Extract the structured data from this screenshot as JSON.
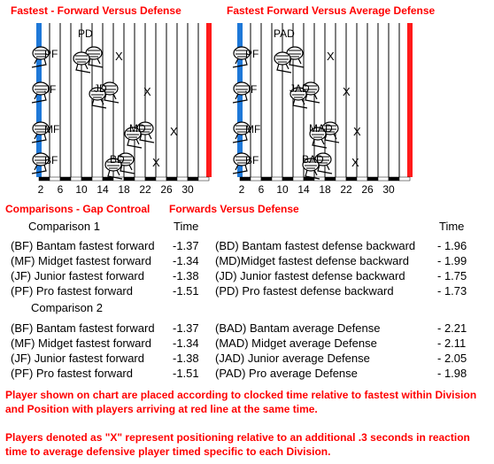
{
  "colors": {
    "accent_red": "#ff0000",
    "start_blue": "#1e78d8",
    "finish_red": "#ff1a1a"
  },
  "titles": {
    "left_chart": "Fastest - Forward Versus Defense",
    "right_chart": "Fastest Forward Versus Average Defense",
    "comparisons_gap": "Comparisons - Gap Controal",
    "forwards_vs_defense": "Forwards Versus Defense"
  },
  "chart_data": [
    {
      "type": "diagram",
      "title": "Fastest - Forward Versus Defense",
      "x_tick_labels": [
        "2",
        "6",
        "10",
        "14",
        "18",
        "22",
        "26",
        "30"
      ],
      "rows": [
        {
          "forward": "PF",
          "defense": "PD"
        },
        {
          "forward": "JF",
          "defense": "JD"
        },
        {
          "forward": "MF",
          "defense": "MD"
        },
        {
          "forward": "BF",
          "defense": "BD"
        }
      ],
      "marker": "X"
    },
    {
      "type": "diagram",
      "title": "Fastest Forward Versus Average Defense",
      "x_tick_labels": [
        "2",
        "6",
        "10",
        "14",
        "18",
        "22",
        "26",
        "30"
      ],
      "rows": [
        {
          "forward": "PF",
          "defense": "PAD"
        },
        {
          "forward": "JF",
          "defense": "JAD"
        },
        {
          "forward": "MF",
          "defense": "MAD"
        },
        {
          "forward": "BF",
          "defense": "BAD"
        }
      ],
      "marker": "X"
    }
  ],
  "time_header": "Time",
  "comparison1": {
    "label": "Comparison 1",
    "time_header": "Time",
    "left": [
      {
        "name": "(BF)  Bantam fastest forward",
        "time": "-1.37"
      },
      {
        "name": "(MF)  Midget fastest forward",
        "time": "-1.34"
      },
      {
        "name": "(JF)  Junior fastest forward",
        "time": "-1.38"
      },
      {
        "name": "(PF)  Pro fastest forward",
        "time": "-1.51"
      }
    ],
    "right": [
      {
        "name": "(BD) Bantam fastest defense backward",
        "time": "- 1.96"
      },
      {
        "name": "(MD)Midget fastest defense backward",
        "time": "- 1.99"
      },
      {
        "name": "(JD) Junior fastest defense backward",
        "time": "- 1.75"
      },
      {
        "name": "(PD) Pro fastest defense backward",
        "time": "- 1.73"
      }
    ]
  },
  "comparison2": {
    "label": "Comparison 2",
    "left": [
      {
        "name": "(BF)  Bantam fastest forward",
        "time": "-1.37"
      },
      {
        "name": "(MF)  Midget fastest forward",
        "time": "-1.34"
      },
      {
        "name": "(JF)  Junior fastest forward",
        "time": "-1.38"
      },
      {
        "name": "(PF)  Pro fastest forward",
        "time": "-1.51"
      }
    ],
    "right": [
      {
        "name": "(BAD)  Bantam average Defense",
        "time": "- 2.21"
      },
      {
        "name": "(MAD)  Midget average Defense",
        "time": "- 2.11"
      },
      {
        "name": "(JAD)  Junior average Defense",
        "time": "- 2.05"
      },
      {
        "name": "(PAD)  Pro average Defense",
        "time": "- 1.98"
      }
    ]
  },
  "notes": [
    "Player shown on chart are placed according to clocked time relative to fastest within Division and Position with players arriving at red line at the same time.",
    "Players denoted as \"X\" represent positioning relative to an additional .3 seconds in reaction time to average defensive player timed specific to each Division."
  ]
}
